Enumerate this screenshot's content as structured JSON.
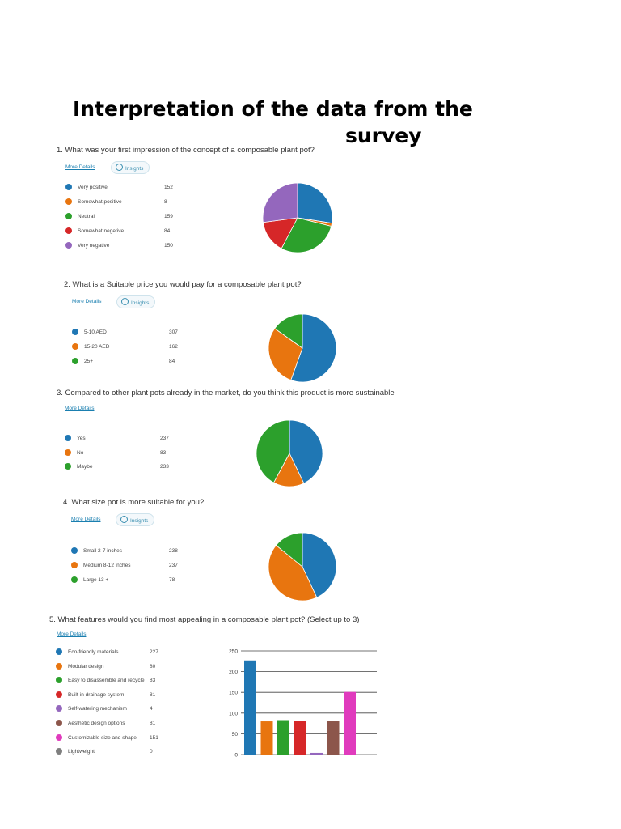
{
  "page": {
    "title_line1": "Interpretation of the data from the",
    "title_line2": "survey"
  },
  "ui": {
    "more_details": "More Details",
    "insights": "Insights"
  },
  "colors": {
    "blue": "#1f77b4",
    "orange": "#e8750f",
    "green": "#2ca02c",
    "red": "#d62728",
    "purple": "#9467bd",
    "brown": "#8c564b",
    "pink": "#e03bbd",
    "gray": "#7f7f7f"
  },
  "chart_data": [
    {
      "type": "pie",
      "question": "1.  What was your first impression of the concept of a composable plant pot?",
      "labels": [
        "Very positive",
        "Somewhat positive",
        "Neutral",
        "Somewhat negetive",
        "Very negative"
      ],
      "values": [
        152,
        8,
        159,
        84,
        150
      ],
      "value_text": [
        "152",
        "8",
        "159",
        "84",
        "150"
      ],
      "colors": [
        "#1f77b4",
        "#e8750f",
        "#2ca02c",
        "#d62728",
        "#9467bd"
      ]
    },
    {
      "type": "pie",
      "question": "2.  What is a Suitable price you would pay for a composable plant pot?",
      "labels": [
        "5-10 AED",
        "15-20 AED",
        "25+"
      ],
      "values": [
        307,
        162,
        84
      ],
      "value_text": [
        "307",
        "162",
        "84"
      ],
      "colors": [
        "#1f77b4",
        "#e8750f",
        "#2ca02c"
      ]
    },
    {
      "type": "pie",
      "question": "3.  Compared to other plant pots already in the market, do you think this product is more sustainable",
      "labels": [
        "Yes",
        "No",
        "Maybe"
      ],
      "values": [
        237,
        83,
        233
      ],
      "value_text": [
        "237",
        "83",
        "233"
      ],
      "colors": [
        "#1f77b4",
        "#e8750f",
        "#2ca02c"
      ]
    },
    {
      "type": "pie",
      "question": "4.  What size pot is more suitable for you?",
      "labels": [
        "Small 2-7 inches",
        "Medium 8-12 inches",
        "Large 13 +"
      ],
      "values": [
        238,
        237,
        78
      ],
      "value_text": [
        "238",
        "237",
        "78"
      ],
      "colors": [
        "#1f77b4",
        "#e8750f",
        "#2ca02c"
      ]
    },
    {
      "type": "bar",
      "question": "5. What features would you find most appealing in a composable plant pot? (Select up to 3)",
      "categories": [
        "Eco-friendly materials",
        "Modular design",
        "Easy to disassemble and recycle",
        "Built-in drainage system",
        "Self-watering mechanism",
        "Aesthetic design options",
        "Customizable size and shape",
        "Lightweight"
      ],
      "values": [
        227,
        80,
        83,
        81,
        4,
        81,
        151,
        0
      ],
      "value_text": [
        "227",
        "80",
        "83",
        "81",
        "4",
        "81",
        "151",
        "0"
      ],
      "colors": [
        "#1f77b4",
        "#e8750f",
        "#2ca02c",
        "#d62728",
        "#9467bd",
        "#8c564b",
        "#e03bbd",
        "#7f7f7f"
      ],
      "ylim": [
        0,
        250
      ],
      "yticks": [
        "0",
        "50",
        "100",
        "150",
        "200",
        "250"
      ]
    }
  ]
}
